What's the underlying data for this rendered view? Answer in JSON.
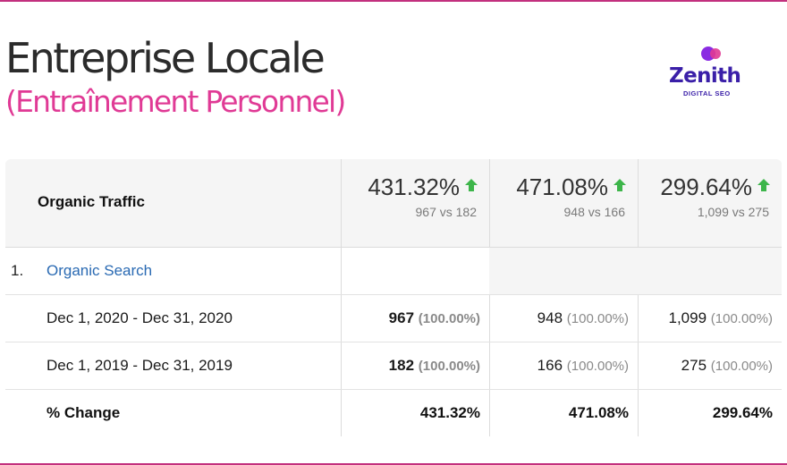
{
  "title": "Entreprise Locale",
  "subtitle": "(Entraînement Personnel)",
  "logo": {
    "brand": "Zenith",
    "tagline": "DIGITAL SEO",
    "colors": {
      "primary": "#3a1fa8",
      "accent": "#e03a95"
    }
  },
  "table": {
    "header_label": "Organic Traffic",
    "summary": [
      {
        "percent": "431.32%",
        "comparison": "967 vs 182",
        "trend_icon": "arrow-up-icon"
      },
      {
        "percent": "471.08%",
        "comparison": "948 vs 166",
        "trend_icon": "arrow-up-icon"
      },
      {
        "percent": "299.64%",
        "comparison": "1,099 vs 275",
        "trend_icon": "arrow-up-icon"
      }
    ],
    "segment": {
      "index": "1.",
      "name": "Organic Search"
    },
    "rows": [
      {
        "range": "Dec 1, 2020 - Dec 31, 2020",
        "values": [
          {
            "num": "967",
            "share": "(100.00%)"
          },
          {
            "num": "948",
            "share": "(100.00%)"
          },
          {
            "num": "1,099",
            "share": "(100.00%)"
          }
        ]
      },
      {
        "range": "Dec 1, 2019 - Dec 31, 2019",
        "values": [
          {
            "num": "182",
            "share": "(100.00%)"
          },
          {
            "num": "166",
            "share": "(100.00%)"
          },
          {
            "num": "275",
            "share": "(100.00%)"
          }
        ]
      }
    ],
    "change": {
      "label": "% Change",
      "values": [
        "431.32%",
        "471.08%",
        "299.64%"
      ]
    }
  },
  "colors": {
    "frame": "#c2307e",
    "link": "#2a6ab3",
    "up": "#3db54a"
  }
}
